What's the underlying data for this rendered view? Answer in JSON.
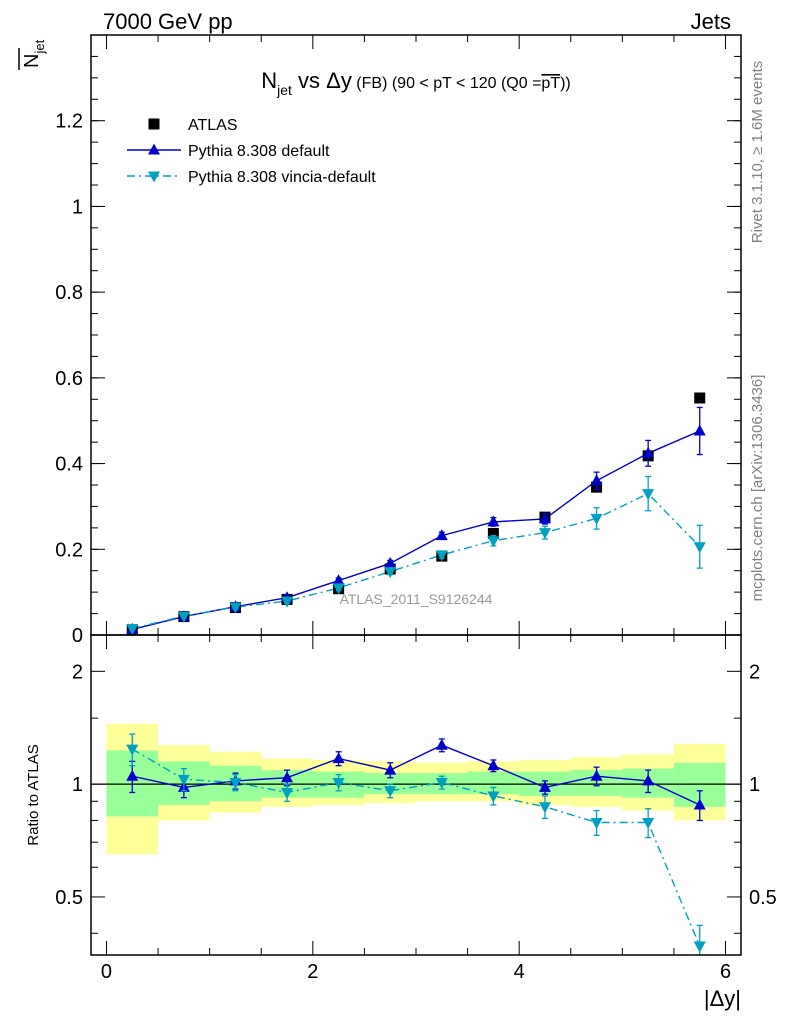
{
  "header": {
    "left": "7000 GeV pp",
    "right": "Jets"
  },
  "side_labels": {
    "rivet": "Rivet 3.1.10, ≥ 1.6M events",
    "mcplots": "mcplots.cern.ch [arXiv:1306.3436]"
  },
  "watermark": "ATLAS_2011_S9126244",
  "chart_data": [
    {
      "type": "line",
      "title": "N_jet vs Δy (FB) (90 < pT < 120 (Q0 = pT̄))",
      "title_parts": {
        "main": "N",
        "sub": "jet",
        "vs": " vs Δy",
        "fb": " (FB)",
        "cut": " (90 < pT < 120 (Q0 =",
        "pt_bar": "pT",
        "close": "))"
      },
      "ylabel": "N̄jet",
      "ylabel_parts": {
        "main": "N",
        "sub": "jet"
      },
      "xlim": [
        -0.15,
        6.15
      ],
      "ylim": [
        0,
        1.4
      ],
      "yticks": [
        0,
        0.2,
        0.4,
        0.6,
        0.8,
        1,
        1.2
      ],
      "ytick_labels": [
        "0",
        "0.2",
        "0.4",
        "0.6",
        "0.8",
        "1",
        "1.2"
      ],
      "legend_position": "top-left",
      "series": [
        {
          "name": "ATLAS",
          "color": "#000000",
          "marker": "square",
          "x": [
            0.25,
            0.75,
            1.25,
            1.75,
            2.25,
            2.75,
            3.25,
            3.75,
            4.25,
            4.75,
            5.25,
            5.75
          ],
          "y": [
            0.012,
            0.043,
            0.064,
            0.083,
            0.108,
            0.154,
            0.184,
            0.237,
            0.275,
            0.345,
            0.418,
            0.553
          ]
        },
        {
          "name": "Pythia 8.308 default",
          "color": "#0000cc",
          "marker": "triangle-up",
          "line": "solid",
          "x": [
            0.25,
            0.75,
            1.25,
            1.75,
            2.25,
            2.75,
            3.25,
            3.75,
            4.25,
            4.75,
            5.25,
            5.75
          ],
          "y": [
            0.013,
            0.043,
            0.066,
            0.087,
            0.127,
            0.167,
            0.232,
            0.264,
            0.271,
            0.36,
            0.424,
            0.476
          ],
          "err": [
            0.002,
            0.003,
            0.004,
            0.005,
            0.006,
            0.007,
            0.008,
            0.01,
            0.012,
            0.02,
            0.03,
            0.055
          ]
        },
        {
          "name": "Pythia 8.308 vincia-default",
          "color": "#00a0c0",
          "marker": "triangle-down",
          "line": "dashdot",
          "x": [
            0.25,
            0.75,
            1.25,
            1.75,
            2.25,
            2.75,
            3.25,
            3.75,
            4.25,
            4.75,
            5.25,
            5.75
          ],
          "y": [
            0.015,
            0.044,
            0.065,
            0.079,
            0.11,
            0.148,
            0.187,
            0.22,
            0.239,
            0.272,
            0.33,
            0.206
          ],
          "err": [
            0.002,
            0.003,
            0.004,
            0.005,
            0.006,
            0.007,
            0.008,
            0.012,
            0.015,
            0.025,
            0.04,
            0.05
          ]
        }
      ]
    },
    {
      "type": "line",
      "ylabel": "Ratio to ATLAS",
      "xlabel": "|Δy|",
      "xlim": [
        -0.15,
        6.15
      ],
      "ylim": [
        0.35,
        2.5
      ],
      "log_y": true,
      "xticks": [
        0,
        2,
        4,
        6
      ],
      "xtick_labels": [
        "0",
        "2",
        "4",
        "6"
      ],
      "yticks": [
        0.5,
        1,
        2
      ],
      "ytick_labels": [
        "0.5",
        "1",
        "2"
      ],
      "bands": {
        "x_edges": [
          0,
          0.5,
          1,
          1.5,
          2,
          2.5,
          3,
          3.5,
          4,
          4.5,
          5,
          5.5,
          6
        ],
        "inner_color": "#99ff99",
        "outer_color": "#ffff99",
        "inner_lo": [
          0.82,
          0.88,
          0.9,
          0.92,
          0.92,
          0.94,
          0.94,
          0.94,
          0.93,
          0.93,
          0.92,
          0.87
        ],
        "inner_hi": [
          1.23,
          1.15,
          1.12,
          1.09,
          1.08,
          1.07,
          1.07,
          1.08,
          1.08,
          1.09,
          1.1,
          1.14
        ],
        "outer_lo": [
          0.65,
          0.8,
          0.84,
          0.87,
          0.88,
          0.89,
          0.9,
          0.9,
          0.88,
          0.87,
          0.85,
          0.8
        ],
        "outer_hi": [
          1.45,
          1.27,
          1.22,
          1.17,
          1.16,
          1.15,
          1.14,
          1.15,
          1.16,
          1.18,
          1.2,
          1.28
        ]
      },
      "series": [
        {
          "name": "Pythia 8.308 default",
          "color": "#0000cc",
          "marker": "triangle-up",
          "line": "solid",
          "x": [
            0.25,
            0.75,
            1.25,
            1.75,
            2.25,
            2.75,
            3.25,
            3.75,
            4.25,
            4.75,
            5.25,
            5.75
          ],
          "y": [
            1.05,
            0.98,
            1.02,
            1.04,
            1.17,
            1.09,
            1.27,
            1.12,
            0.98,
            1.05,
            1.02,
            0.88
          ],
          "err": [
            0.1,
            0.06,
            0.05,
            0.05,
            0.05,
            0.05,
            0.05,
            0.04,
            0.04,
            0.06,
            0.07,
            0.08
          ]
        },
        {
          "name": "Pythia 8.308 vincia-default",
          "color": "#00a0c0",
          "marker": "triangle-down",
          "line": "dashdot",
          "x": [
            0.25,
            0.75,
            1.25,
            1.75,
            2.25,
            2.75,
            3.25,
            3.75,
            4.25,
            4.75,
            5.25,
            5.75
          ],
          "y": [
            1.24,
            1.03,
            1.01,
            0.95,
            1.01,
            0.96,
            1.01,
            0.93,
            0.87,
            0.79,
            0.79,
            0.37
          ],
          "err": [
            0.12,
            0.07,
            0.05,
            0.05,
            0.05,
            0.04,
            0.04,
            0.05,
            0.06,
            0.06,
            0.07,
            0.05
          ]
        }
      ]
    }
  ]
}
